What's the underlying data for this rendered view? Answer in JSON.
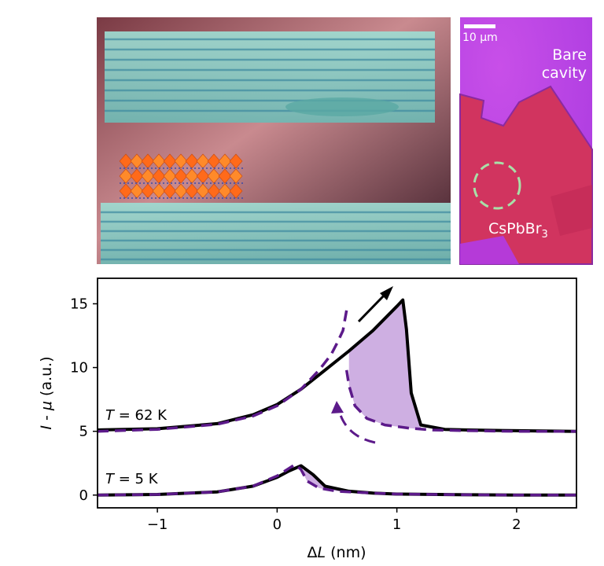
{
  "panel_top_left": {
    "description_icon": "cavity-render-illustration"
  },
  "panel_top_right": {
    "scale_bar_label": "10 µm",
    "label_bare": "Bare",
    "label_cavity": "cavity",
    "label_material": "CsPbBr",
    "label_material_sub": "3"
  },
  "chart_data": {
    "type": "line",
    "xlabel_prefix": "Δ",
    "xlabel_var": "L",
    "xlabel_unit": " (nm)",
    "ylabel_var1": "I",
    "ylabel_sep": " - ",
    "ylabel_var2": "μ",
    "ylabel_unit": " (a.u.)",
    "xlim": [
      -1.5,
      2.5
    ],
    "ylim": [
      -1,
      17
    ],
    "xticks": [
      -1,
      0,
      1,
      2
    ],
    "xtick_labels": [
      "−1",
      "0",
      "1",
      "2"
    ],
    "yticks": [
      0,
      5,
      10,
      15
    ],
    "ytick_labels": [
      "0",
      "5",
      "10",
      "15"
    ],
    "annotations": [
      {
        "var": "T",
        "text": " = 62 K"
      },
      {
        "var": "T",
        "text": " = 5 K"
      }
    ],
    "colors": {
      "solid": "#000000",
      "dashed": "#5c1a8a",
      "fill": "#c9a6df"
    },
    "series": [
      {
        "style": "solid",
        "x": [
          -1.5,
          -1.0,
          -0.5,
          -0.2,
          0.0,
          0.2,
          0.4,
          0.6,
          0.8,
          1.0,
          1.05,
          1.08,
          1.12,
          1.2,
          1.4,
          1.6,
          2.0,
          2.5
        ],
        "y": [
          5.1,
          5.2,
          5.6,
          6.3,
          7.1,
          8.3,
          9.8,
          11.3,
          12.9,
          14.8,
          15.3,
          13.0,
          8.0,
          5.5,
          5.15,
          5.1,
          5.05,
          5.0
        ]
      },
      {
        "style": "dashed",
        "x": [
          -1.5,
          -1.0,
          -0.5,
          -0.2,
          0.0,
          0.2,
          0.35,
          0.45,
          0.5,
          0.55,
          0.58
        ],
        "y": [
          5.0,
          5.15,
          5.55,
          6.2,
          7.0,
          8.3,
          9.8,
          11.0,
          11.9,
          12.9,
          14.5
        ]
      },
      {
        "style": "dashed",
        "x": [
          0.58,
          0.6,
          0.65,
          0.75,
          0.9,
          1.1,
          1.3,
          1.6,
          2.0,
          2.5
        ],
        "y": [
          9.8,
          8.6,
          7.0,
          6.0,
          5.5,
          5.25,
          5.1,
          5.05,
          5.0,
          5.0
        ]
      },
      {
        "style": "solid",
        "x": [
          -1.5,
          -1.0,
          -0.5,
          -0.2,
          0.0,
          0.1,
          0.2,
          0.3,
          0.4,
          0.6,
          0.8,
          1.0,
          1.5,
          2.0,
          2.5
        ],
        "y": [
          0.0,
          0.05,
          0.25,
          0.7,
          1.4,
          1.9,
          2.3,
          1.6,
          0.7,
          0.3,
          0.15,
          0.08,
          0.03,
          0.0,
          0.0
        ]
      },
      {
        "style": "dashed",
        "x": [
          -1.5,
          -1.0,
          -0.5,
          -0.2,
          0.0,
          0.1,
          0.15,
          0.2,
          0.25,
          0.35,
          0.5,
          0.8,
          1.0,
          1.5,
          2.0,
          2.5
        ],
        "y": [
          0.0,
          0.05,
          0.25,
          0.7,
          1.5,
          2.1,
          2.4,
          2.0,
          1.1,
          0.55,
          0.3,
          0.15,
          0.08,
          0.03,
          0.0,
          0.0
        ]
      }
    ]
  }
}
